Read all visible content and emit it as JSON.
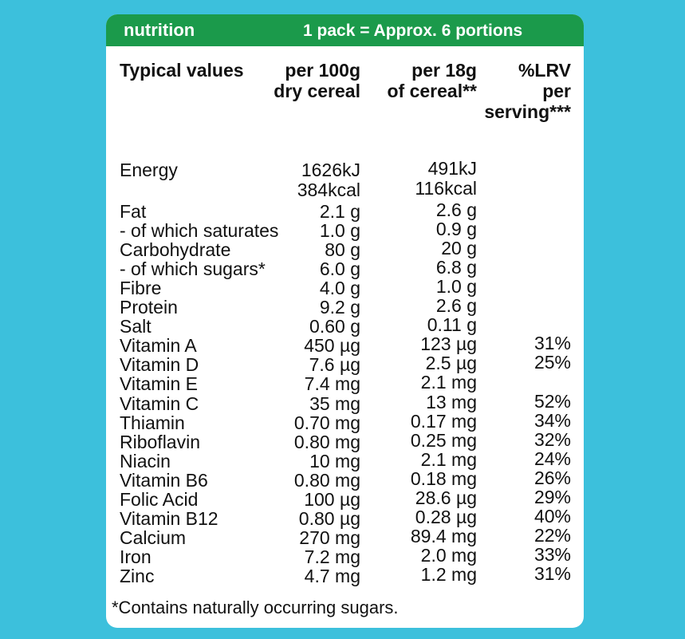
{
  "header": {
    "label": "nutrition",
    "portions": "1 pack = Approx. 6 portions"
  },
  "columns": [
    {
      "lines": [
        "Typical values"
      ]
    },
    {
      "lines": [
        "per 100g",
        "dry cereal"
      ]
    },
    {
      "lines": [
        "per 18g",
        "of cereal**"
      ]
    },
    {
      "lines": [
        "%LRV",
        "per",
        "serving***"
      ]
    }
  ],
  "energy": {
    "label": "Energy",
    "per_100g": [
      "1626kJ",
      "384kcal"
    ],
    "per_18g": [
      "491kJ",
      "116kcal"
    ]
  },
  "rows": [
    {
      "label": "Fat",
      "per_100g": "2.1 g",
      "per_18g": "2.6 g"
    },
    {
      "label": "- of which saturates",
      "per_100g": "1.0 g",
      "per_18g": "0.9 g"
    },
    {
      "label": "Carbohydrate",
      "per_100g": "80 g",
      "per_18g": "20 g"
    },
    {
      "label": "- of which sugars*",
      "per_100g": "6.0 g",
      "per_18g": "6.8 g"
    },
    {
      "label": "Fibre",
      "per_100g": "4.0 g",
      "per_18g": "1.0 g"
    },
    {
      "label": "Protein",
      "per_100g": "9.2 g",
      "per_18g": "2.6 g"
    },
    {
      "label": "Salt",
      "per_100g": "0.60 g",
      "per_18g": "0.11 g"
    },
    {
      "label": "Vitamin A",
      "per_100g": "450 µg",
      "per_18g": "123 µg",
      "lrv": "31%"
    },
    {
      "label": "Vitamin D",
      "per_100g": "7.6 µg",
      "per_18g": "2.5 µg",
      "lrv": "25%"
    },
    {
      "label": "Vitamin E",
      "per_100g": "7.4 mg",
      "per_18g": "2.1 mg"
    },
    {
      "label": "Vitamin C",
      "per_100g": "35 mg",
      "per_18g": "13 mg",
      "lrv": "52%"
    },
    {
      "label": "Thiamin",
      "per_100g": "0.70 mg",
      "per_18g": "0.17 mg",
      "lrv": "34%"
    },
    {
      "label": "Riboflavin",
      "per_100g": "0.80 mg",
      "per_18g": "0.25 mg",
      "lrv": "32%"
    },
    {
      "label": "Niacin",
      "per_100g": "10 mg",
      "per_18g": "2.1 mg",
      "lrv": "24%"
    },
    {
      "label": "Vitamin B6",
      "per_100g": "0.80 mg",
      "per_18g": "0.18 mg",
      "lrv": "26%"
    },
    {
      "label": "Folic Acid",
      "per_100g": "100 µg",
      "per_18g": "28.6 µg",
      "lrv": "29%"
    },
    {
      "label": "Vitamin B12",
      "per_100g": "0.80 µg",
      "per_18g": "0.28 µg",
      "lrv": "40%"
    },
    {
      "label": "Calcium",
      "per_100g": "270 mg",
      "per_18g": "89.4 mg",
      "lrv": "22%"
    },
    {
      "label": "Iron",
      "per_100g": "7.2 mg",
      "per_18g": "2.0 mg",
      "lrv": "33%"
    },
    {
      "label": "Zinc",
      "per_100g": "4.7 mg",
      "per_18g": "1.2 mg",
      "lrv": "31%"
    }
  ],
  "footnote": "*Contains naturally occurring sugars."
}
